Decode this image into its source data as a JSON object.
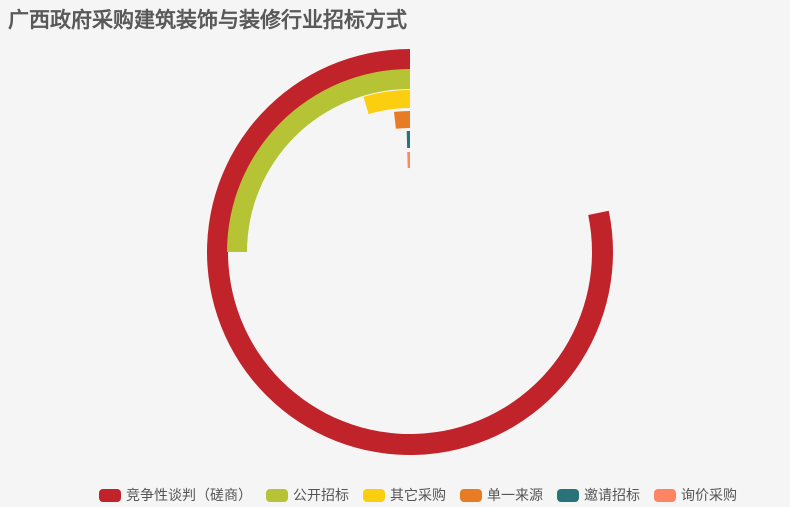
{
  "chart_data": {
    "type": "bar",
    "layout": "polar-radial",
    "title": "广西政府采购建筑装饰与装修行业招标方式",
    "categories": [
      "竞争性谈判（磋商）",
      "公开招标",
      "其它采购",
      "单一来源",
      "邀请招标",
      "询价采购"
    ],
    "values": [
      1080,
      345,
      64,
      25,
      6,
      6
    ],
    "angle_max": 1380,
    "colors": [
      "#c1232b",
      "#b5c334",
      "#fcce10",
      "#e87c25",
      "#27727b",
      "#fe8463"
    ],
    "legend_position": "bottom"
  }
}
